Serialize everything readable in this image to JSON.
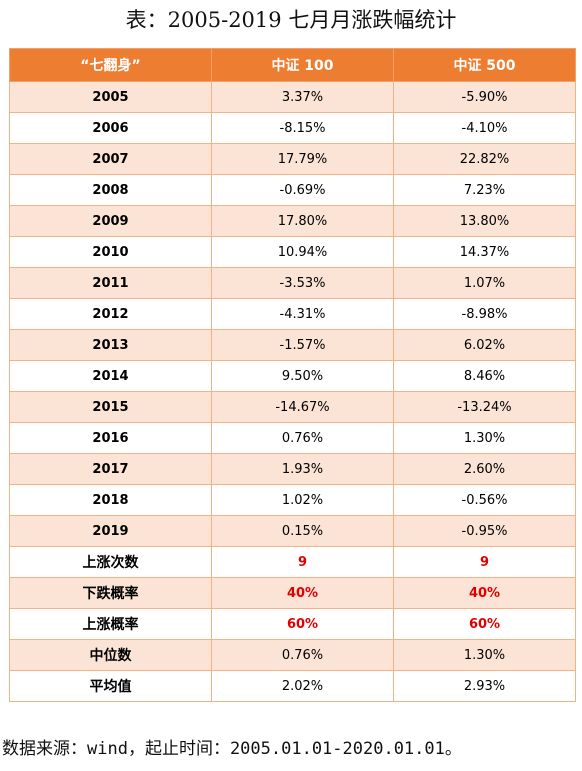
{
  "title": "表：2005-2019 七月月涨跌幅统计",
  "table": {
    "headers": [
      "“七翻身”",
      "中证 100",
      "中证 500"
    ],
    "rows": [
      [
        "2005",
        "3.37%",
        "-5.90%"
      ],
      [
        "2006",
        "-8.15%",
        "-4.10%"
      ],
      [
        "2007",
        "17.79%",
        "22.82%"
      ],
      [
        "2008",
        "-0.69%",
        "7.23%"
      ],
      [
        "2009",
        "17.80%",
        "13.80%"
      ],
      [
        "2010",
        "10.94%",
        "14.37%"
      ],
      [
        "2011",
        "-3.53%",
        "1.07%"
      ],
      [
        "2012",
        "-4.31%",
        "-8.98%"
      ],
      [
        "2013",
        "-1.57%",
        "6.02%"
      ],
      [
        "2014",
        "9.50%",
        "8.46%"
      ],
      [
        "2015",
        "-14.67%",
        "-13.24%"
      ],
      [
        "2016",
        "0.76%",
        "1.30%"
      ],
      [
        "2017",
        "1.93%",
        "2.60%"
      ],
      [
        "2018",
        "1.02%",
        "-0.56%"
      ],
      [
        "2019",
        "0.15%",
        "-0.95%"
      ]
    ],
    "summary": [
      [
        "上涨次数",
        "9",
        "9"
      ],
      [
        "下跌概率",
        "40%",
        "40%"
      ],
      [
        "上涨概率",
        "60%",
        "60%"
      ],
      [
        "中位数",
        "0.76%",
        "1.30%"
      ],
      [
        "平均值",
        "2.02%",
        "2.93%"
      ]
    ]
  },
  "source": "数据来源：wind，起止时间：2005.01.01-2020.01.01。",
  "colors": {
    "header_bg": "#ed7d31",
    "band_bg": "#fbe4d5",
    "highlight_text": "#e00000"
  }
}
